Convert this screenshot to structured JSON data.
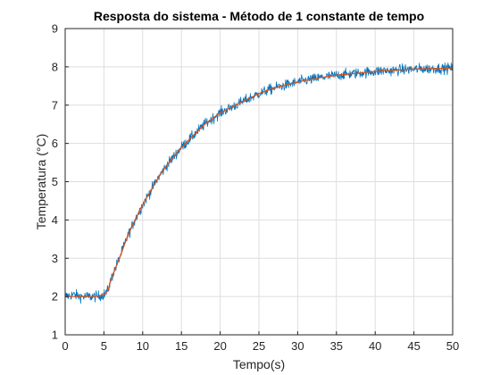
{
  "chart_data": {
    "type": "line",
    "title": "Resposta do sistema - Método de 1 constante de tempo",
    "xlabel": "Tempo(s)",
    "ylabel": "Temperatura (°C)",
    "xlim": [
      0,
      50
    ],
    "ylim": [
      1,
      9
    ],
    "xticks": [
      0,
      5,
      10,
      15,
      20,
      25,
      30,
      35,
      40,
      45,
      50
    ],
    "yticks": [
      1,
      2,
      3,
      4,
      5,
      6,
      7,
      8,
      9
    ],
    "grid": true,
    "legend": "none",
    "series": [
      {
        "color": "#0072BD",
        "style": "noisy",
        "x": [
          0,
          1,
          2,
          3,
          4,
          5,
          5.5,
          6,
          7,
          8,
          9,
          10,
          11,
          12,
          13,
          14,
          15,
          16,
          17,
          18,
          19,
          20,
          21,
          22,
          23,
          24,
          25,
          26,
          27,
          28,
          29,
          30,
          31,
          32,
          33,
          34,
          35,
          36,
          37,
          38,
          39,
          40,
          41,
          42,
          43,
          44,
          45,
          46,
          47,
          48,
          49,
          50
        ],
        "y": [
          2.0,
          2.05,
          2.0,
          2.0,
          2.0,
          2.05,
          2.15,
          2.5,
          3.0,
          3.55,
          4.0,
          4.4,
          4.75,
          5.1,
          5.4,
          5.65,
          5.9,
          6.1,
          6.3,
          6.5,
          6.65,
          6.8,
          6.9,
          7.0,
          7.1,
          7.2,
          7.3,
          7.38,
          7.45,
          7.5,
          7.55,
          7.6,
          7.65,
          7.68,
          7.72,
          7.75,
          7.78,
          7.8,
          7.82,
          7.84,
          7.86,
          7.88,
          7.9,
          7.9,
          7.92,
          7.93,
          7.94,
          7.95,
          7.95,
          7.96,
          7.96,
          7.97
        ]
      },
      {
        "color": "#D95319",
        "style": "smooth",
        "x": [
          0,
          1,
          2,
          3,
          4,
          5,
          5.5,
          6,
          7,
          8,
          9,
          10,
          11,
          12,
          13,
          14,
          15,
          16,
          17,
          18,
          19,
          20,
          21,
          22,
          23,
          24,
          25,
          26,
          27,
          28,
          29,
          30,
          31,
          32,
          33,
          34,
          35,
          36,
          37,
          38,
          39,
          40,
          41,
          42,
          43,
          44,
          45,
          46,
          47,
          48,
          49,
          50
        ],
        "y": [
          2.0,
          2.0,
          2.0,
          2.0,
          2.0,
          2.05,
          2.15,
          2.5,
          3.0,
          3.55,
          4.0,
          4.4,
          4.75,
          5.1,
          5.4,
          5.65,
          5.9,
          6.1,
          6.3,
          6.5,
          6.65,
          6.8,
          6.9,
          7.0,
          7.1,
          7.2,
          7.3,
          7.38,
          7.45,
          7.5,
          7.55,
          7.6,
          7.65,
          7.68,
          7.72,
          7.75,
          7.78,
          7.8,
          7.82,
          7.84,
          7.86,
          7.88,
          7.9,
          7.9,
          7.92,
          7.93,
          7.94,
          7.95,
          7.95,
          7.96,
          7.96,
          7.97
        ]
      }
    ]
  }
}
